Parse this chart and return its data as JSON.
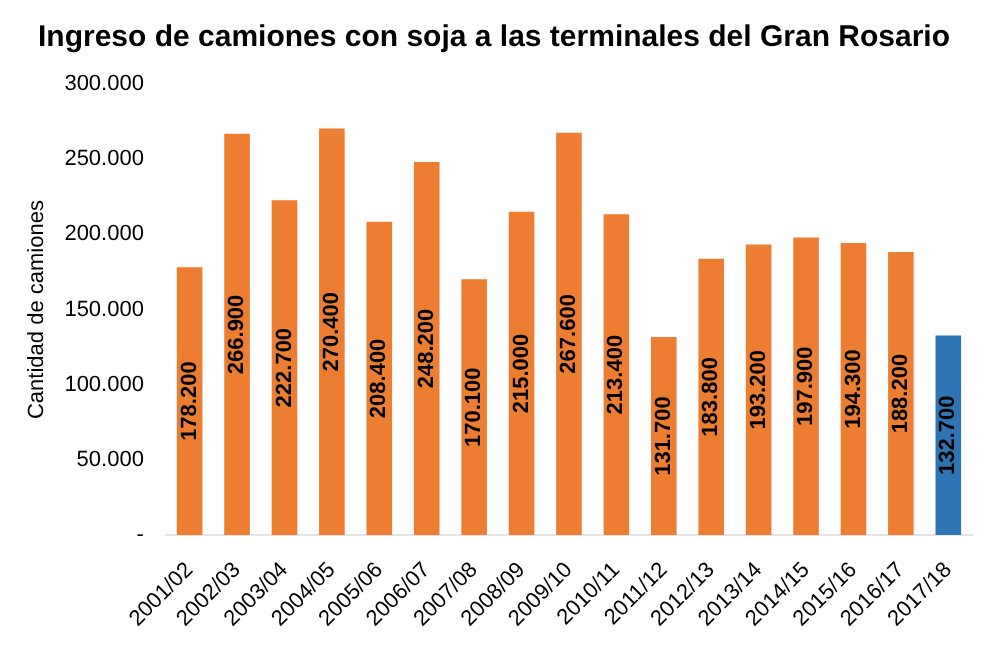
{
  "chart_data": {
    "type": "bar",
    "title": "Ingreso de camiones con soja a las terminales del Gran Rosario",
    "ylabel": "Cantidad de camiones",
    "categories": [
      "2001/02",
      "2002/03",
      "2003/04",
      "2004/05",
      "2005/06",
      "2006/07",
      "2007/08",
      "2008/09",
      "2009/10",
      "2010/11",
      "2011/12",
      "2012/13",
      "2013/14",
      "2014/15",
      "2015/16",
      "2016/17",
      "2017/18"
    ],
    "values": [
      178200,
      266900,
      222700,
      270400,
      208400,
      248200,
      170100,
      215000,
      267600,
      213400,
      131700,
      183800,
      193200,
      197900,
      194300,
      188200,
      132700
    ],
    "colors": [
      "#ed7d31",
      "#ed7d31",
      "#ed7d31",
      "#ed7d31",
      "#ed7d31",
      "#ed7d31",
      "#ed7d31",
      "#ed7d31",
      "#ed7d31",
      "#ed7d31",
      "#ed7d31",
      "#ed7d31",
      "#ed7d31",
      "#ed7d31",
      "#ed7d31",
      "#ed7d31",
      "#2e75b6"
    ],
    "ylim": [
      0,
      300000
    ],
    "yticks": [
      {
        "value": 0,
        "label": "-"
      },
      {
        "value": 50000,
        "label": "50.000"
      },
      {
        "value": 100000,
        "label": "100.000"
      },
      {
        "value": 150000,
        "label": "150.000"
      },
      {
        "value": 200000,
        "label": "200.000"
      },
      {
        "value": 250000,
        "label": "250.000"
      },
      {
        "value": 300000,
        "label": "300.000"
      }
    ],
    "value_labels": [
      "178.200",
      "266.900",
      "222.700",
      "270.400",
      "208.400",
      "248.200",
      "170.100",
      "215.000",
      "267.600",
      "213.400",
      "131.700",
      "183.800",
      "193.200",
      "197.900",
      "194.300",
      "188.200",
      "132.700"
    ],
    "grid": false,
    "legend": false
  }
}
